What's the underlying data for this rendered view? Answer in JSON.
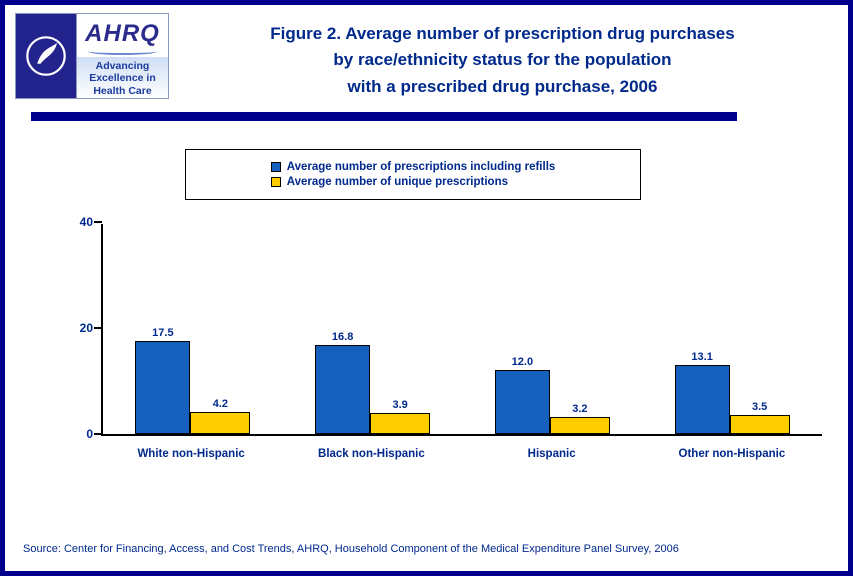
{
  "header": {
    "title_lines": [
      "Figure 2. Average number of prescription drug purchases",
      "by race/ethnicity status for the population",
      "with a prescribed drug purchase, 2006"
    ],
    "logo": {
      "ahrq_acronym": "AHRQ",
      "tagline_lines": [
        "Advancing",
        "Excellence in",
        "Health Care"
      ]
    }
  },
  "legend": {
    "items": [
      {
        "label": "Average number of prescriptions including refills",
        "color": "#1560BD"
      },
      {
        "label": "Average number of unique prescriptions",
        "color": "#FFCC00"
      }
    ]
  },
  "chart_data": {
    "type": "bar",
    "title": "Figure 2. Average number of prescription drug purchases by race/ethnicity status for the population with a prescribed drug purchase, 2006",
    "categories": [
      "White non-Hispanic",
      "Black non-Hispanic",
      "Hispanic",
      "Other non-Hispanic"
    ],
    "series": [
      {
        "name": "Average number of prescriptions including refills",
        "color": "#1560BD",
        "values": [
          17.5,
          16.8,
          12.0,
          13.1
        ]
      },
      {
        "name": "Average number of unique prescriptions",
        "color": "#FFCC00",
        "values": [
          4.2,
          3.9,
          3.2,
          3.5
        ]
      }
    ],
    "xlabel": "",
    "ylabel": "",
    "ylim": [
      0,
      40
    ],
    "yticks": [
      0,
      20,
      40
    ],
    "grid": false,
    "legend_position": "top"
  },
  "footer": {
    "source": "Source: Center for Financing, Access, and Cost Trends, AHRQ, Household Component of the Medical Expenditure Panel Survey, 2006"
  },
  "colors": {
    "border_navy": "#00008B",
    "text_navy": "#00298C",
    "bar_blue": "#1560BD",
    "bar_yellow": "#FFCC00"
  }
}
